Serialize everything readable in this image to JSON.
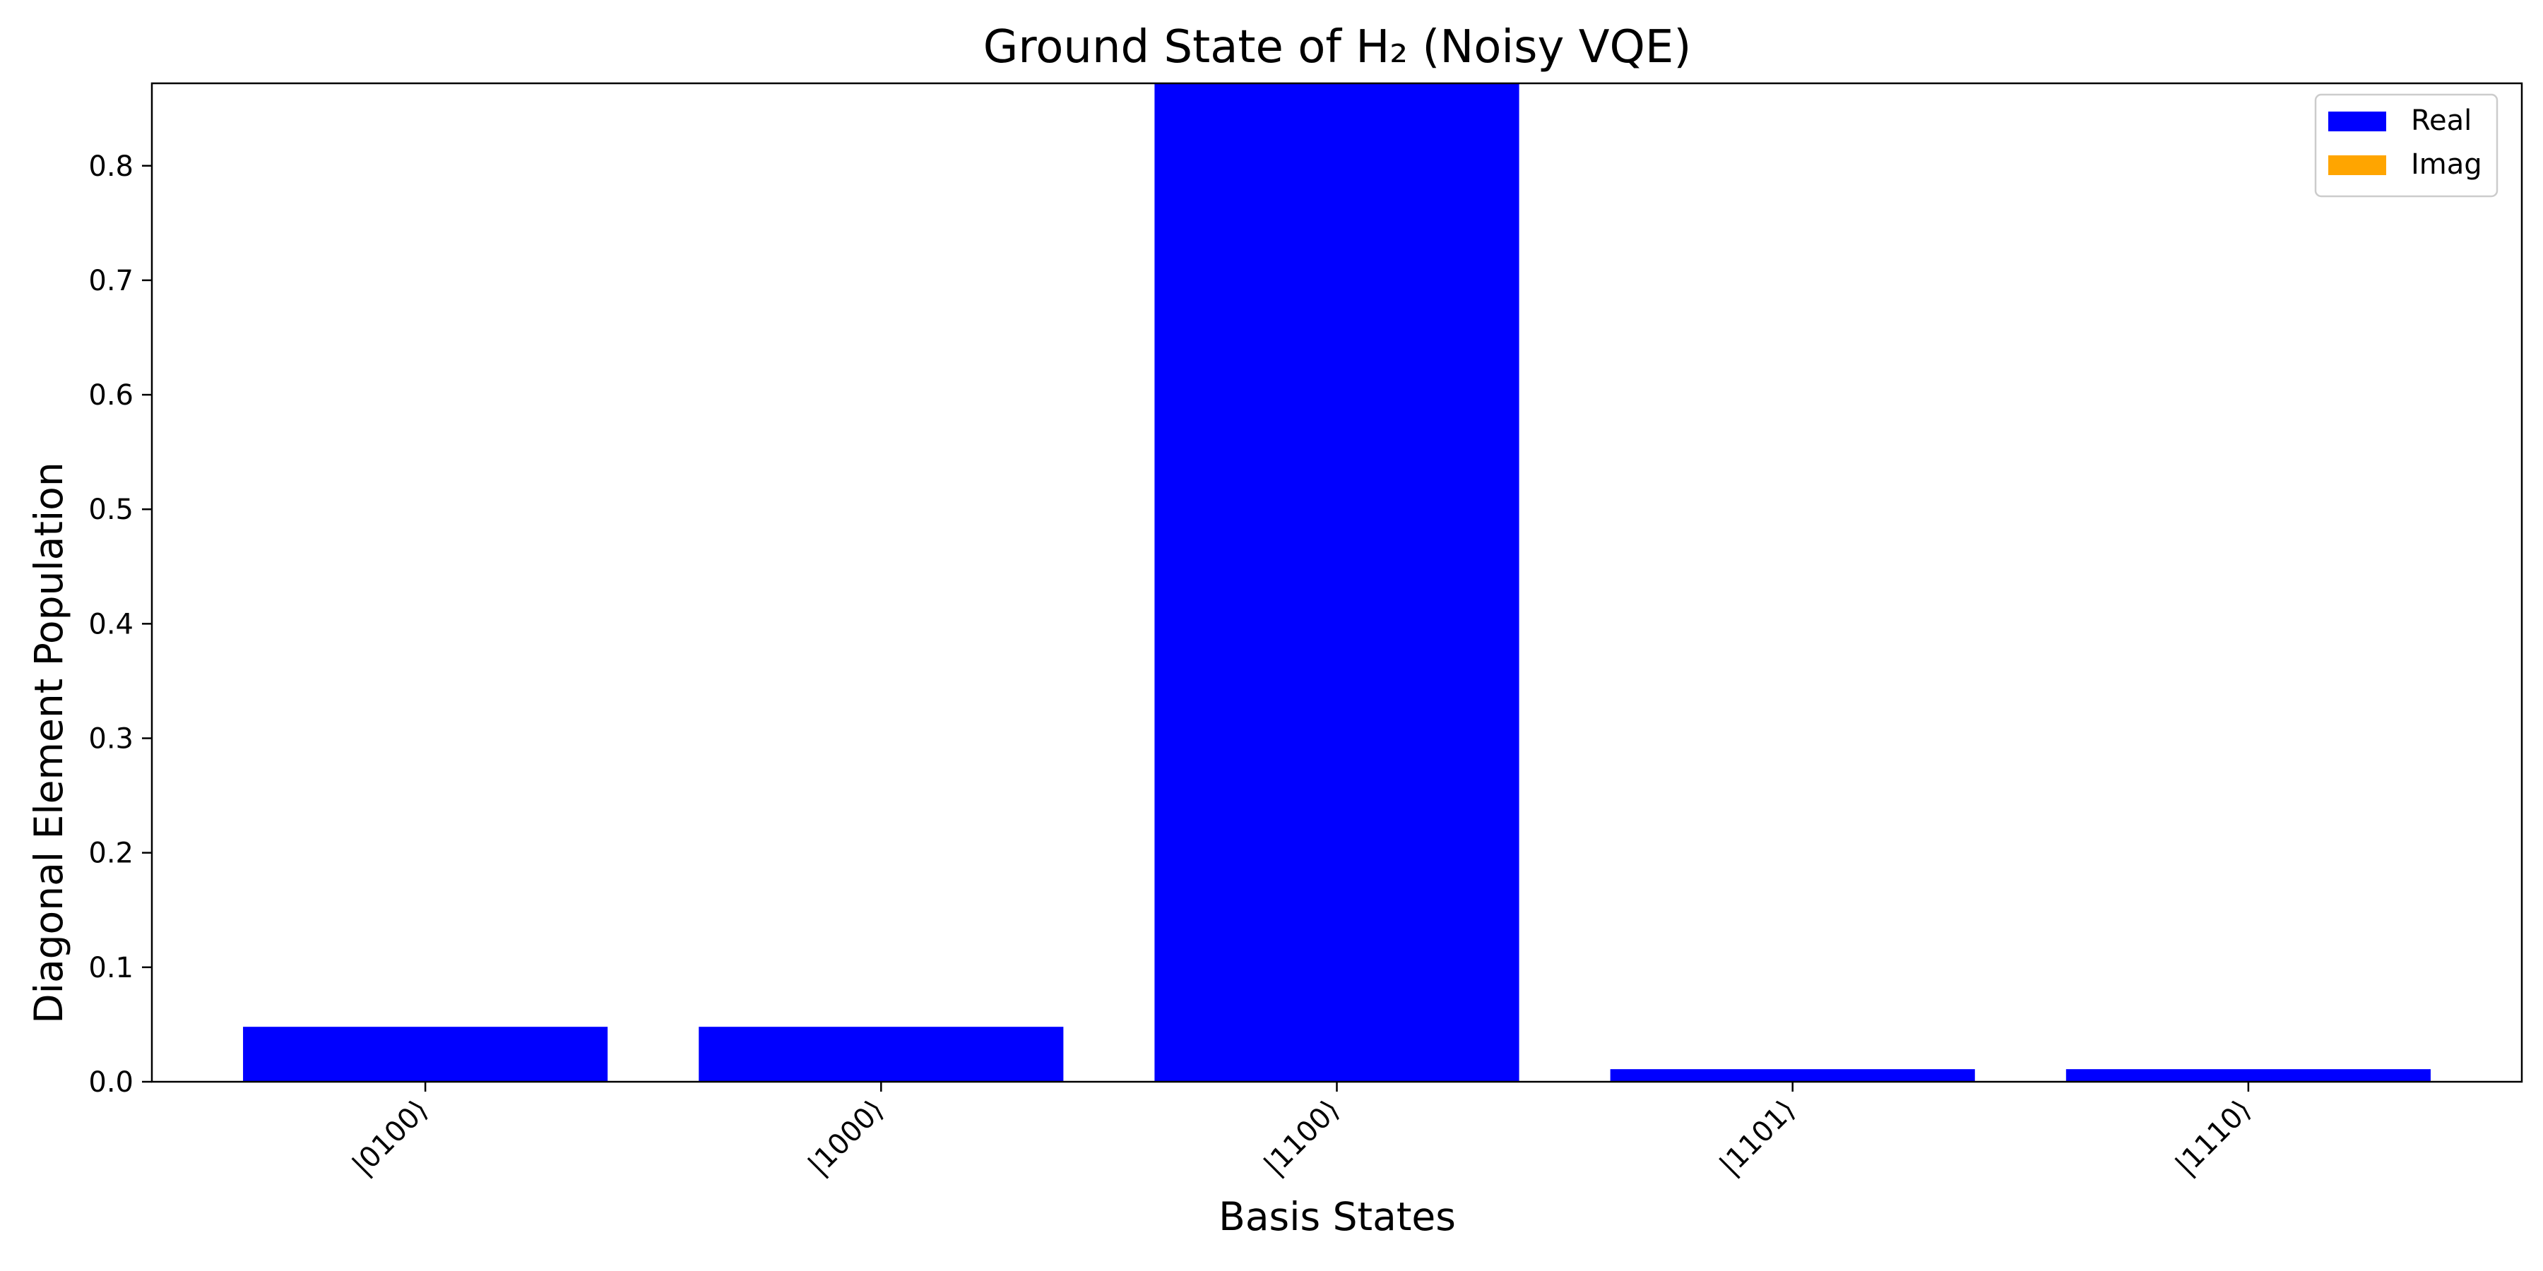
{
  "chart_data": {
    "type": "bar",
    "title": "Ground State of H₂ (Noisy VQE)",
    "xlabel": "Basis States",
    "ylabel": "Diagonal Element Population",
    "categories": [
      "|0100⟩",
      "|1000⟩",
      "|1100⟩",
      "|1101⟩",
      "|1110⟩"
    ],
    "series": [
      {
        "name": "Real",
        "color": "#0000ff",
        "values": [
          0.048,
          0.048,
          0.88,
          0.011,
          0.011
        ]
      },
      {
        "name": "Imag",
        "color": "#ffa500",
        "values": [
          0,
          0,
          0,
          0,
          0
        ]
      }
    ],
    "ylim": [
      0,
      0.872
    ],
    "yticks": [
      "0.0",
      "0.1",
      "0.2",
      "0.3",
      "0.4",
      "0.5",
      "0.6",
      "0.7",
      "0.8"
    ],
    "grid": false,
    "legend_position": "top-right"
  }
}
